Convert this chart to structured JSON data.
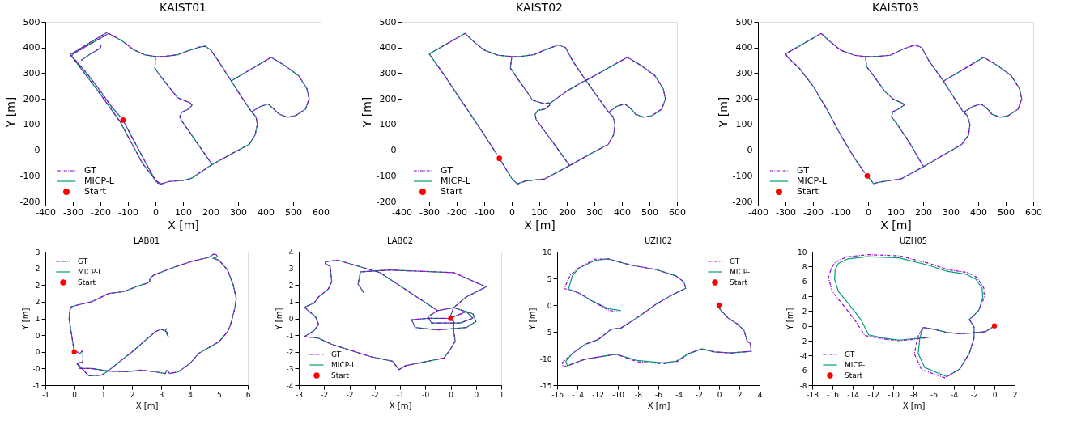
{
  "chart_data": [
    {
      "type": "line",
      "title": "KAIST01",
      "xlabel": "X [m]",
      "ylabel": "Y [m]",
      "xlim": [
        -400,
        600
      ],
      "ylim": [
        -200,
        500
      ],
      "xticks": [
        -400,
        -300,
        -200,
        -100,
        0,
        100,
        200,
        300,
        400,
        500,
        600
      ],
      "yticks": [
        -200,
        -100,
        0,
        100,
        200,
        300,
        400,
        500
      ],
      "legend": "bottom left",
      "series": [
        {
          "name": "GT",
          "color": "#9400d3",
          "line_style": "dashed",
          "x": [
            -118,
            -80,
            -40,
            0,
            20,
            50,
            100,
            130,
            200,
            280,
            340,
            362,
            370,
            365,
            350,
            320,
            275,
            230,
            200,
            180,
            160,
            120,
            80,
            30,
            0,
            -40,
            -80,
            -120,
            -170,
            -300,
            -305,
            -290,
            -250,
            -200,
            -160,
            -128
          ],
          "values": [
            117,
            40,
            -40,
            -118,
            -132,
            -122,
            -118,
            -110,
            -60,
            -12,
            22,
            60,
            100,
            130,
            148,
            195,
            270,
            345,
            392,
            405,
            402,
            388,
            372,
            365,
            365,
            372,
            392,
            425,
            455,
            375,
            365,
            350,
            300,
            230,
            170,
            130
          ]
        },
        {
          "color": "#9400d3",
          "line_style": "dashed",
          "x": [
            -175,
            -310,
            -300,
            -258,
            -208,
            -168,
            -128,
            -88,
            -48,
            8,
            20
          ],
          "values": [
            460,
            372,
            360,
            300,
            230,
            170,
            110,
            30,
            -50,
            -128,
            -132
          ]
        },
        {
          "color": "#9400d3",
          "line_style": "dashed",
          "x": [
            -270,
            -240,
            -200,
            -198
          ],
          "values": [
            350,
            372,
            398,
            408
          ]
        },
        {
          "color": "#9400d3",
          "line_style": "dashed",
          "x": [
            0,
            -2,
            10,
            50,
            80,
            100,
            125,
            133,
            120,
            95,
            88,
            95,
            150,
            205
          ],
          "values": [
            365,
            320,
            300,
            245,
            205,
            195,
            185,
            175,
            160,
            147,
            130,
            115,
            30,
            -55
          ]
        },
        {
          "color": "#9400d3",
          "line_style": "dashed",
          "x": [
            350,
            380,
            410,
            430,
            450,
            480,
            510,
            545,
            558,
            550,
            520,
            470,
            420,
            275
          ],
          "values": [
            150,
            170,
            180,
            160,
            140,
            128,
            135,
            160,
            200,
            240,
            290,
            330,
            362,
            270
          ]
        },
        {
          "name": "MICP-L",
          "color": "#009e73",
          "line_style": "solid",
          "x": [
            -118,
            -80,
            -40,
            0,
            20,
            50,
            100,
            130,
            200,
            280,
            340,
            362,
            370,
            365,
            350,
            320,
            275,
            230,
            200,
            180,
            160,
            120,
            80,
            30,
            0,
            -40,
            -80,
            -120,
            -170,
            -300,
            -305,
            -290,
            -250,
            -200,
            -160,
            -128
          ],
          "values": [
            117,
            40,
            -40,
            -118,
            -132,
            -122,
            -118,
            -110,
            -60,
            -12,
            22,
            60,
            100,
            130,
            148,
            195,
            270,
            345,
            392,
            405,
            402,
            388,
            372,
            365,
            365,
            372,
            392,
            425,
            455,
            375,
            365,
            350,
            300,
            230,
            170,
            130
          ]
        },
        {
          "color": "#009e73",
          "line_style": "solid",
          "x": [
            -175,
            -310,
            -300,
            -258,
            -208,
            -168,
            -128,
            -88,
            -48,
            8,
            20
          ],
          "values": [
            460,
            372,
            360,
            300,
            230,
            170,
            110,
            30,
            -50,
            -128,
            -132
          ]
        },
        {
          "color": "#009e73",
          "line_style": "solid",
          "x": [
            -270,
            -240,
            -200,
            -198
          ],
          "values": [
            350,
            372,
            398,
            408
          ]
        },
        {
          "color": "#009e73",
          "line_style": "solid",
          "x": [
            0,
            -2,
            10,
            50,
            80,
            100,
            125,
            133,
            120,
            95,
            88,
            95,
            150,
            205
          ],
          "values": [
            365,
            320,
            300,
            245,
            205,
            195,
            185,
            175,
            160,
            147,
            130,
            115,
            30,
            -55
          ]
        },
        {
          "color": "#009e73",
          "line_style": "solid",
          "x": [
            350,
            380,
            410,
            430,
            450,
            480,
            510,
            545,
            558,
            550,
            520,
            470,
            420,
            275
          ],
          "values": [
            150,
            170,
            180,
            160,
            140,
            128,
            135,
            160,
            200,
            240,
            290,
            330,
            362,
            270
          ]
        },
        {
          "name": "Start",
          "type": "scatter",
          "color": "#ff0000",
          "marker": "circle",
          "x": [
            -118
          ],
          "values": [
            117
          ]
        }
      ]
    },
    {
      "type": "line",
      "title": "KAIST02",
      "xlabel": "X [m]",
      "ylabel": "Y [m]",
      "xlim": [
        -400,
        600
      ],
      "ylim": [
        -200,
        500
      ],
      "xticks": [
        -400,
        -300,
        -200,
        -100,
        0,
        100,
        200,
        300,
        400,
        500,
        600
      ],
      "yticks": [
        -200,
        -100,
        0,
        100,
        200,
        300,
        400,
        500
      ],
      "legend": "bottom left",
      "series": [
        {
          "name": "GT",
          "color": "#9400d3",
          "line_style": "dashed",
          "x": [
            -45,
            0,
            20,
            50,
            120,
            210,
            290,
            350,
            370,
            375,
            368,
            350,
            300,
            270,
            220,
            195,
            170,
            130,
            80,
            30,
            0,
            -50,
            -100,
            -135,
            -170,
            -300,
            -290,
            -250,
            -200,
            -150,
            -100,
            -55
          ],
          "values": [
            -32,
            -110,
            -132,
            -120,
            -112,
            -60,
            -12,
            22,
            60,
            100,
            130,
            150,
            225,
            270,
            350,
            400,
            410,
            395,
            372,
            365,
            365,
            370,
            390,
            420,
            455,
            375,
            360,
            300,
            220,
            140,
            60,
            -15
          ]
        },
        {
          "color": "#9400d3",
          "line_style": "dashed",
          "x": [
            0,
            -5,
            20,
            60,
            75,
            120,
            135,
            138,
            120,
            95,
            85,
            88,
            150,
            210
          ],
          "values": [
            365,
            320,
            280,
            220,
            195,
            180,
            185,
            175,
            160,
            155,
            140,
            120,
            30,
            -60
          ]
        },
        {
          "color": "#9400d3",
          "line_style": "dashed",
          "x": [
            135,
            200,
            255,
            275,
            420,
            470,
            520,
            550,
            558,
            545,
            510,
            480,
            450,
            430,
            410,
            380,
            355
          ],
          "values": [
            180,
            230,
            265,
            275,
            362,
            330,
            290,
            240,
            200,
            160,
            135,
            128,
            140,
            165,
            180,
            170,
            150
          ]
        },
        {
          "name": "MICP-L",
          "color": "#009e73",
          "line_style": "solid",
          "x": [
            -45,
            0,
            20,
            50,
            120,
            210,
            290,
            350,
            370,
            375,
            368,
            350,
            300,
            270,
            220,
            195,
            170,
            130,
            80,
            30,
            0,
            -50,
            -100,
            -135,
            -170,
            -300,
            -290,
            -250,
            -200,
            -150,
            -100,
            -55
          ],
          "values": [
            -32,
            -110,
            -132,
            -120,
            -112,
            -60,
            -12,
            22,
            60,
            100,
            130,
            150,
            225,
            270,
            350,
            400,
            410,
            395,
            372,
            365,
            365,
            370,
            390,
            420,
            455,
            375,
            360,
            300,
            220,
            140,
            60,
            -15
          ]
        },
        {
          "color": "#009e73",
          "line_style": "solid",
          "x": [
            0,
            -5,
            20,
            60,
            75,
            120,
            135,
            138,
            120,
            95,
            85,
            88,
            150,
            210
          ],
          "values": [
            365,
            320,
            280,
            220,
            195,
            180,
            185,
            175,
            160,
            155,
            140,
            120,
            30,
            -60
          ]
        },
        {
          "color": "#009e73",
          "line_style": "solid",
          "x": [
            135,
            200,
            255,
            275,
            420,
            470,
            520,
            550,
            558,
            545,
            510,
            480,
            450,
            430,
            410,
            380,
            355
          ],
          "values": [
            180,
            230,
            265,
            275,
            362,
            330,
            290,
            240,
            200,
            160,
            135,
            128,
            140,
            165,
            180,
            170,
            150
          ]
        },
        {
          "name": "Start",
          "type": "scatter",
          "color": "#ff0000",
          "marker": "circle",
          "x": [
            -45
          ],
          "values": [
            -32
          ]
        }
      ]
    },
    {
      "type": "line",
      "title": "KAIST03",
      "xlabel": "X [m]",
      "ylabel": "Y [m]",
      "xlim": [
        -400,
        600
      ],
      "ylim": [
        -200,
        500
      ],
      "xticks": [
        -400,
        -300,
        -200,
        -100,
        0,
        100,
        200,
        300,
        400,
        500,
        600
      ],
      "yticks": [
        -200,
        -100,
        0,
        100,
        200,
        300,
        400,
        500
      ],
      "legend": "bottom left",
      "series": [
        {
          "name": "GT",
          "color": "#9400d3",
          "line_style": "dashed",
          "x": [
            -3,
            20,
            40,
            80,
            120,
            200,
            280,
            340,
            365,
            370,
            360,
            345,
            300,
            270,
            220,
            195,
            170,
            130,
            80,
            30,
            -10,
            -50,
            -100,
            -140,
            -170,
            -300,
            -290,
            -250,
            -200,
            -150,
            -100,
            -50,
            -12
          ],
          "values": [
            -100,
            -130,
            -125,
            -118,
            -112,
            -65,
            -15,
            22,
            60,
            100,
            135,
            150,
            225,
            275,
            350,
            400,
            410,
            395,
            370,
            365,
            365,
            370,
            390,
            425,
            455,
            375,
            360,
            320,
            250,
            160,
            60,
            -30,
            -88
          ]
        },
        {
          "color": "#9400d3",
          "line_style": "dashed",
          "x": [
            -10,
            -5,
            20,
            60,
            90,
            130,
            130,
            110,
            90,
            85,
            100,
            150,
            200
          ],
          "values": [
            365,
            325,
            290,
            230,
            200,
            180,
            175,
            160,
            150,
            130,
            110,
            30,
            -62
          ]
        },
        {
          "color": "#9400d3",
          "line_style": "dashed",
          "x": [
            275,
            420,
            470,
            520,
            550,
            558,
            545,
            510,
            480,
            450,
            430,
            410,
            380,
            350
          ],
          "values": [
            270,
            362,
            330,
            290,
            240,
            200,
            160,
            135,
            128,
            140,
            165,
            180,
            170,
            150
          ]
        },
        {
          "name": "MICP-L",
          "color": "#009e73",
          "line_style": "solid",
          "x": [
            -3,
            20,
            40,
            80,
            120,
            200,
            280,
            340,
            365,
            370,
            360,
            345,
            300,
            270,
            220,
            195,
            170,
            130,
            80,
            30,
            -10,
            -50,
            -100,
            -140,
            -170,
            -300,
            -290,
            -250,
            -200,
            -150,
            -100,
            -50,
            -12
          ],
          "values": [
            -100,
            -130,
            -125,
            -118,
            -112,
            -65,
            -15,
            22,
            60,
            100,
            135,
            150,
            225,
            275,
            350,
            400,
            410,
            395,
            370,
            365,
            365,
            370,
            390,
            425,
            455,
            375,
            360,
            320,
            250,
            160,
            60,
            -30,
            -88
          ]
        },
        {
          "color": "#009e73",
          "line_style": "solid",
          "x": [
            -10,
            -5,
            20,
            60,
            90,
            130,
            130,
            110,
            90,
            85,
            100,
            150,
            200
          ],
          "values": [
            365,
            325,
            290,
            230,
            200,
            180,
            175,
            160,
            150,
            130,
            110,
            30,
            -62
          ]
        },
        {
          "color": "#009e73",
          "line_style": "solid",
          "x": [
            275,
            420,
            470,
            520,
            550,
            558,
            545,
            510,
            480,
            450,
            430,
            410,
            380,
            350
          ],
          "values": [
            270,
            362,
            330,
            290,
            240,
            200,
            160,
            135,
            128,
            140,
            165,
            180,
            170,
            150
          ]
        },
        {
          "name": "Start",
          "type": "scatter",
          "color": "#ff0000",
          "marker": "circle",
          "x": [
            -3
          ],
          "values": [
            -100
          ]
        }
      ]
    },
    {
      "type": "line",
      "title": "LAB01",
      "xlabel": "X [m]",
      "ylabel": "Y [m]",
      "xlim": [
        -1,
        6
      ],
      "ylim": [
        -1,
        3
      ],
      "xticks": [
        -1,
        0,
        1,
        2,
        3,
        4,
        5,
        6
      ],
      "yticks": [
        -1,
        {
          "value": -0.5,
          "label": "-0"
        },
        0,
        {
          "value": 0.5,
          "label": "0"
        },
        1,
        {
          "value": 1.5,
          "label": "2"
        },
        2,
        {
          "value": 2.5,
          "label": "2"
        },
        3
      ],
      "legend": "top left",
      "series": [
        {
          "name": "GT",
          "color": "#9400d3",
          "line_style": "dashed",
          "x": [
            0,
            -0.1,
            -0.18,
            -0.15,
            -0.1,
            0.1,
            0.6,
            1.2,
            1.7,
            2.2,
            2.5,
            2.6,
            2.62,
            2.75,
            3.5,
            4.1,
            4.5,
            4.7,
            4.8,
            4.9,
            4.95,
            4.8,
            5.0,
            5.3,
            5.5,
            5.6,
            5.55,
            5.4,
            5.3,
            5.0,
            4.3,
            4.0,
            3.6,
            3.3,
            3.2,
            3.15,
            2.8,
            2.3,
            1.8,
            1.2,
            0.6,
            0.2,
            0.1,
            0.3,
            0.3,
            0.2,
            0.1
          ],
          "values": [
            0,
            0.55,
            1.0,
            1.25,
            1.35,
            1.4,
            1.5,
            1.75,
            1.8,
            1.97,
            2.05,
            2.1,
            2.2,
            2.3,
            2.55,
            2.72,
            2.8,
            2.85,
            2.92,
            2.92,
            2.85,
            2.8,
            2.75,
            2.45,
            2.0,
            1.6,
            1.3,
            0.8,
            0.6,
            0.3,
            -0.05,
            -0.35,
            -0.6,
            -0.65,
            -0.55,
            -0.65,
            -0.6,
            -0.55,
            -0.6,
            -0.58,
            -0.5,
            -0.5,
            -0.35,
            -0.3,
            0.05,
            -0.05,
            0
          ]
        },
        {
          "color": "#9400d3",
          "line_style": "dashed",
          "x": [
            0.1,
            0.5,
            0.95,
            1.2,
            2.0,
            2.8,
            3.0,
            3.2,
            3.25,
            3.15,
            3.2
          ],
          "values": [
            -0.35,
            -0.72,
            -0.7,
            -0.55,
            0.0,
            0.6,
            0.68,
            0.6,
            0.45,
            0.65,
            0.7
          ]
        },
        {
          "name": "MICP-L",
          "color": "#009e73",
          "line_style": "solid",
          "x": [
            0,
            -0.1,
            -0.18,
            -0.15,
            -0.1,
            0.1,
            0.6,
            1.2,
            1.7,
            2.2,
            2.5,
            2.6,
            2.62,
            2.75,
            3.5,
            4.1,
            4.5,
            4.7,
            4.8,
            4.9,
            4.95,
            4.8,
            5.0,
            5.3,
            5.5,
            5.6,
            5.55,
            5.4,
            5.3,
            5.0,
            4.3,
            4.0,
            3.6,
            3.3,
            3.2,
            3.15,
            2.8,
            2.3,
            1.8,
            1.2,
            0.6,
            0.2,
            0.1,
            0.3,
            0.3,
            0.2,
            0.1
          ],
          "values": [
            0,
            0.55,
            1.0,
            1.25,
            1.35,
            1.4,
            1.5,
            1.75,
            1.8,
            1.97,
            2.05,
            2.1,
            2.2,
            2.3,
            2.55,
            2.72,
            2.8,
            2.85,
            2.92,
            2.92,
            2.85,
            2.8,
            2.75,
            2.45,
            2.0,
            1.6,
            1.3,
            0.8,
            0.6,
            0.3,
            -0.05,
            -0.35,
            -0.6,
            -0.65,
            -0.55,
            -0.65,
            -0.6,
            -0.55,
            -0.6,
            -0.58,
            -0.5,
            -0.5,
            -0.35,
            -0.3,
            0.05,
            -0.05,
            0
          ]
        },
        {
          "color": "#009e73",
          "line_style": "solid",
          "x": [
            0.1,
            0.5,
            0.95,
            1.2,
            2.0,
            2.8,
            3.0,
            3.2,
            3.25,
            3.15,
            3.2
          ],
          "values": [
            -0.35,
            -0.72,
            -0.7,
            -0.55,
            0.0,
            0.6,
            0.68,
            0.6,
            0.45,
            0.65,
            0.7
          ]
        },
        {
          "name": "Start",
          "type": "scatter",
          "color": "#ff0000",
          "marker": "circle",
          "x": [
            0
          ],
          "values": [
            0
          ]
        }
      ]
    },
    {
      "type": "line",
      "title": "LAB02",
      "xlabel": "X [m]",
      "ylabel": "Y [m]",
      "xlim": [
        -3,
        1
      ],
      "ylim": [
        -4,
        4
      ],
      "xticks": [
        -3,
        {
          "value": -2.5,
          "label": "-2"
        },
        -2,
        {
          "value": -1.5,
          "label": "-2"
        },
        -1,
        {
          "value": -0.5,
          "label": "-0"
        },
        0,
        {
          "value": 0.5,
          "label": "0"
        },
        1
      ],
      "yticks": [
        -4,
        -3,
        -2,
        -1,
        0,
        1,
        2,
        3,
        4
      ],
      "legend": "bottom left",
      "series": [
        {
          "name": "GT",
          "color": "#9400d3",
          "line_style": "dashed",
          "x": [
            -0.02,
            -0.45,
            -0.77,
            -0.7,
            -0.26,
            0.31,
            0.5,
            0.44,
            0.06,
            -0.26,
            -0.45,
            -0.38,
            0.19,
            0.44,
            0.31,
            -0.02,
            0.06,
            0.31,
            0.7,
            0.06,
            -1.21,
            -1.78,
            -1.83,
            -1.72
          ],
          "values": [
            0,
            0.01,
            -0.08,
            -0.54,
            -0.69,
            -0.54,
            -0.18,
            0.28,
            0.65,
            0.47,
            0.1,
            -0.27,
            -0.27,
            0.01,
            0.41,
            0,
            0.65,
            1.29,
            1.89,
            2.75,
            2.9,
            2.79,
            2.06,
            1.56
          ]
        },
        {
          "color": "#9400d3",
          "line_style": "dashed",
          "x": [
            -0.26,
            -1.4,
            -2.23,
            -2.48,
            -2.48,
            -2.38,
            -2.35,
            -2.42,
            -2.61,
            -2.7,
            -2.89,
            -2.67,
            -2.61,
            -2.7,
            -2.89,
            -2.61,
            -2.35,
            -1.59,
            -1.15,
            -1.02,
            -0.89,
            -0.13,
            0.0,
            0.09,
            0.06,
            0.06,
            -0.02
          ],
          "values": [
            0.47,
            2.75,
            3.49,
            3.4,
            3.3,
            3.12,
            2.21,
            1.75,
            1.29,
            0.92,
            0.67,
            0.1,
            -0.36,
            -0.73,
            -1.09,
            -1.18,
            -1.55,
            -2.28,
            -2.56,
            -3.07,
            -2.83,
            -2.37,
            -1.82,
            -1.37,
            -0.73,
            -0.18,
            0
          ]
        },
        {
          "name": "MICP-L",
          "color": "#009e73",
          "line_style": "solid",
          "x": [
            -0.02,
            -0.45,
            -0.77,
            -0.7,
            -0.26,
            0.31,
            0.5,
            0.44,
            0.06,
            -0.26,
            -0.45,
            -0.38,
            0.19,
            0.44,
            0.31,
            -0.02,
            0.06,
            0.31,
            0.7,
            0.06,
            -1.21,
            -1.78,
            -1.83,
            -1.72
          ],
          "values": [
            0,
            0.01,
            -0.08,
            -0.54,
            -0.69,
            -0.54,
            -0.18,
            0.28,
            0.65,
            0.47,
            0.1,
            -0.27,
            -0.27,
            0.01,
            0.41,
            0,
            0.65,
            1.29,
            1.89,
            2.75,
            2.9,
            2.79,
            2.06,
            1.56
          ]
        },
        {
          "color": "#009e73",
          "line_style": "solid",
          "x": [
            -0.26,
            -1.4,
            -2.23,
            -2.48,
            -2.48,
            -2.38,
            -2.35,
            -2.42,
            -2.61,
            -2.7,
            -2.89,
            -2.67,
            -2.61,
            -2.7,
            -2.89,
            -2.61,
            -2.35,
            -1.59,
            -1.15,
            -1.02,
            -0.89,
            -0.13,
            0.0,
            0.09,
            0.06,
            0.06,
            -0.02
          ],
          "values": [
            0.47,
            2.75,
            3.49,
            3.4,
            3.3,
            3.12,
            2.21,
            1.75,
            1.29,
            0.92,
            0.67,
            0.1,
            -0.36,
            -0.73,
            -1.09,
            -1.18,
            -1.55,
            -2.28,
            -2.56,
            -3.07,
            -2.83,
            -2.37,
            -1.82,
            -1.37,
            -0.73,
            -0.18,
            0
          ]
        },
        {
          "name": "Start",
          "type": "scatter",
          "color": "#ff0000",
          "marker": "circle",
          "x": [
            0
          ],
          "values": [
            0
          ]
        }
      ]
    },
    {
      "type": "line",
      "title": "UZH02",
      "xlabel": "X [m]",
      "ylabel": "Y [m]",
      "xlim": [
        -16,
        4
      ],
      "ylim": [
        -15,
        10
      ],
      "xticks": [
        -16,
        -14,
        -12,
        -10,
        -8,
        -6,
        -4,
        -2,
        0,
        2,
        4
      ],
      "yticks": [
        -15,
        -10,
        -5,
        0,
        5,
        10
      ],
      "legend": "top right",
      "series": [
        {
          "name": "GT",
          "color": "#9400d3",
          "line_style": "dashed",
          "x": [
            -0.1,
            0.03,
            0.86,
            1.82,
            2.46,
            2.78,
            3.1,
            3.17,
            1.18,
            -0.42,
            -1.7,
            -2.98,
            -4.26,
            -5.54,
            -8.1,
            -10.18,
            -13.22,
            -15.4,
            -15.5,
            -14.5,
            -13.22,
            -11.94,
            -10.66,
            -9.7,
            -8.1,
            -6.18,
            -4.58,
            -3.3,
            -3.46,
            -4.26,
            -6.18,
            -8.74,
            -10.98,
            -12.26,
            -13.86,
            -14.7,
            -15.3,
            -13.86,
            -12.58,
            -10.98,
            -10.0
          ],
          "values": [
            -0.3,
            -0.64,
            -2.38,
            -3.55,
            -4.71,
            -6.74,
            -7.21,
            -8.66,
            -8.95,
            -8.78,
            -8.2,
            -9.07,
            -10.7,
            -11.0,
            -10.6,
            -9.19,
            -10.12,
            -11.6,
            -10.8,
            -9.07,
            -7.33,
            -6.45,
            -4.53,
            -4.3,
            -2.38,
            0.23,
            1.98,
            3.14,
            4.3,
            5.47,
            6.63,
            7.5,
            8.66,
            8.6,
            6.92,
            5.6,
            3.1,
            2.27,
            0.81,
            -0.9,
            -1.3
          ]
        },
        {
          "name": "MICP-L",
          "color": "#009e73",
          "line_style": "solid",
          "x": [
            -0.1,
            0.03,
            0.86,
            1.82,
            2.46,
            2.78,
            3.1,
            3.17,
            1.18,
            -0.42,
            -1.7,
            -2.98,
            -4.26,
            -5.54,
            -8.1,
            -10.18,
            -13.22,
            -14.98,
            -15.14,
            -14.5,
            -13.22,
            -11.94,
            -10.66,
            -9.7,
            -8.1,
            -6.18,
            -4.58,
            -3.3,
            -3.46,
            -4.26,
            -6.18,
            -8.74,
            -10.98,
            -12.26,
            -13.86,
            -14.5,
            -14.88,
            -13.86,
            -12.58,
            -10.98,
            -9.7
          ],
          "values": [
            -0.3,
            -0.64,
            -2.38,
            -3.55,
            -4.71,
            -6.74,
            -7.21,
            -8.66,
            -8.95,
            -8.78,
            -8.2,
            -9.07,
            -10.52,
            -10.81,
            -10.35,
            -9.19,
            -10.12,
            -11.4,
            -10.52,
            -9.07,
            -7.33,
            -6.45,
            -4.53,
            -4.3,
            -2.38,
            0.23,
            1.98,
            3.14,
            4.3,
            5.47,
            6.63,
            7.5,
            8.66,
            8.37,
            6.92,
            5.47,
            2.97,
            2.27,
            0.81,
            -0.64,
            -1.05
          ]
        },
        {
          "name": "Start",
          "type": "scatter",
          "color": "#ff0000",
          "marker": "circle",
          "x": [
            0
          ],
          "values": [
            0
          ]
        }
      ]
    },
    {
      "type": "line",
      "title": "UZH05",
      "xlabel": "X [m]",
      "ylabel": "Y [m]",
      "xlim": [
        -18,
        2
      ],
      "ylim": [
        -8,
        10
      ],
      "xticks": [
        -18,
        -16,
        -14,
        -12,
        -10,
        -8,
        -6,
        -4,
        -2,
        0,
        2
      ],
      "yticks": [
        -8,
        -6,
        -4,
        -2,
        0,
        2,
        4,
        6,
        8,
        10
      ],
      "legend": "bottom left",
      "series": [
        {
          "name": "GT",
          "color": "#9400d3",
          "line_style": "dashed",
          "x": [
            0,
            -0.9,
            -2.16,
            -3.43,
            -4.69,
            -5.95,
            -7.05,
            -7.6,
            -7.9,
            -7.2,
            -4.9,
            -3.43,
            -2.48,
            -2.01,
            -2.01,
            -2.48,
            -2.16,
            -1.53,
            -1.0,
            -1.05,
            -1.7,
            -2.7,
            -4.69,
            -6.5,
            -9.4,
            -12.5,
            -14.6,
            -15.7,
            -16.1,
            -16.4,
            -16.0,
            -14.7,
            -13.7,
            -12.8,
            -11.0,
            -9.42,
            -7.84,
            -6.27
          ],
          "values": [
            0,
            -0.79,
            -0.96,
            -1.05,
            -0.88,
            -0.46,
            -0.21,
            -1.6,
            -3.8,
            -5.9,
            -7.0,
            -5.82,
            -3.72,
            -1.63,
            -0.17,
            0.88,
            1.21,
            2.13,
            3.81,
            5.1,
            6.5,
            7.2,
            7.6,
            8.45,
            9.45,
            9.6,
            9.3,
            8.6,
            7.8,
            6.5,
            4.6,
            2.4,
            0.6,
            -1.3,
            -1.75,
            -2.0,
            -1.8,
            -1.51
          ]
        },
        {
          "name": "MICP-L",
          "color": "#009e73",
          "line_style": "solid",
          "x": [
            0,
            -0.9,
            -2.16,
            -3.43,
            -4.69,
            -5.95,
            -7.05,
            -7.37,
            -7.53,
            -6.9,
            -4.69,
            -3.43,
            -2.48,
            -2.01,
            -2.01,
            -2.48,
            -2.16,
            -1.53,
            -1.15,
            -1.22,
            -1.85,
            -2.79,
            -4.69,
            -6.58,
            -9.42,
            -12.57,
            -14.47,
            -15.41,
            -15.73,
            -15.79,
            -15.41,
            -14.15,
            -13.21,
            -12.42,
            -11.0,
            -9.42,
            -7.84,
            -6.27
          ],
          "values": [
            0,
            -0.79,
            -0.96,
            -1.05,
            -0.88,
            -0.46,
            -0.21,
            -1.63,
            -3.72,
            -5.61,
            -6.86,
            -5.82,
            -3.72,
            -1.63,
            -0.17,
            0.88,
            1.21,
            2.13,
            3.81,
            5.06,
            6.32,
            6.95,
            7.36,
            8.2,
            9.16,
            9.33,
            9.04,
            8.41,
            7.57,
            6.32,
            4.64,
            2.55,
            0.88,
            -1.21,
            -1.63,
            -1.92,
            -1.72,
            -1.51
          ]
        },
        {
          "name": "Start",
          "type": "scatter",
          "color": "#ff0000",
          "marker": "circle",
          "x": [
            0
          ],
          "values": [
            0
          ]
        }
      ]
    }
  ]
}
